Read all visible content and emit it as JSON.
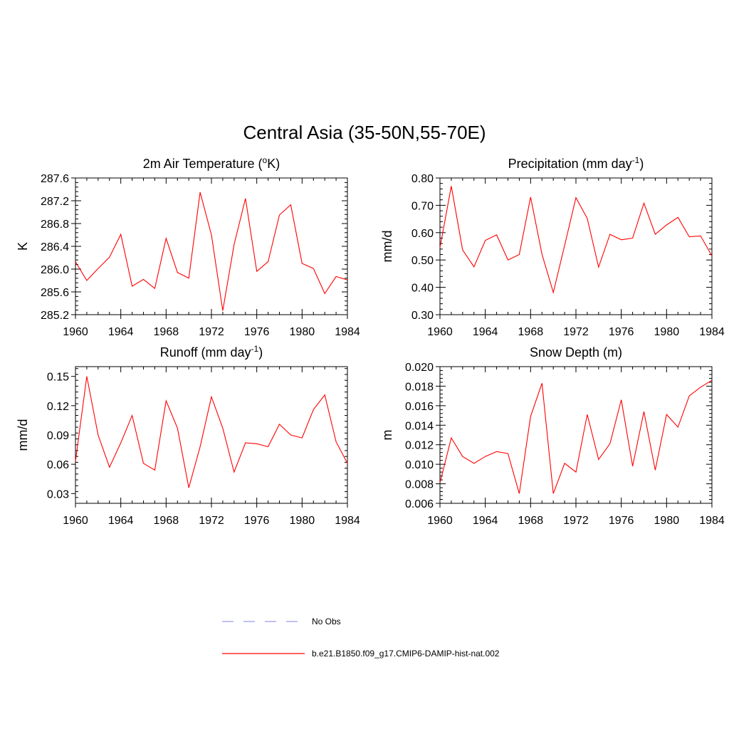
{
  "figure": {
    "title": "Central Asia (35-50N,55-70E)"
  },
  "legend": {
    "items": [
      {
        "label": "No Obs",
        "color": "#9b9bf0",
        "dash": true
      },
      {
        "label": "b.e21.B1850.f09_g17.CMIP6-DAMIP-hist-nat.002",
        "color": "#ff0000",
        "dash": false
      }
    ]
  },
  "chart_data": [
    {
      "type": "line",
      "title": "2m Air Temperature (°K)",
      "title_parts": [
        "2m Air Temperature (",
        "o",
        "K)"
      ],
      "ylabel": "K",
      "xlim": [
        1960,
        1984
      ],
      "ylim": [
        285.2,
        287.6
      ],
      "xticks": [
        1960,
        1964,
        1968,
        1972,
        1976,
        1980,
        1984
      ],
      "xtick_labels": [
        "1960",
        "1964",
        "1968",
        "1972",
        "1976",
        "1980",
        "1984"
      ],
      "yticks": [
        285.2,
        285.6,
        286.0,
        286.4,
        286.8,
        287.2,
        287.6
      ],
      "ytick_labels": [
        "285.2",
        "285.6",
        "286.0",
        "286.4",
        "286.8",
        "287.2",
        "287.6"
      ],
      "series": [
        {
          "color": "#ff0000",
          "x": [
            1960,
            1961,
            1962,
            1963,
            1964,
            1965,
            1966,
            1967,
            1968,
            1969,
            1970,
            1971,
            1972,
            1973,
            1974,
            1975,
            1976,
            1977,
            1978,
            1979,
            1980,
            1981,
            1982,
            1983,
            1984
          ],
          "values": [
            286.13,
            285.8,
            286.01,
            286.21,
            286.61,
            285.7,
            285.82,
            285.66,
            286.54,
            285.94,
            285.84,
            287.35,
            286.6,
            285.27,
            286.43,
            287.24,
            285.96,
            286.13,
            286.95,
            287.13,
            286.1,
            286.01,
            285.57,
            285.87,
            285.81
          ]
        }
      ]
    },
    {
      "type": "line",
      "title": "Precipitation (mm day-1)",
      "title_parts": [
        "Precipitation (mm day",
        "-1",
        ")"
      ],
      "ylabel": "mm/d",
      "xlim": [
        1960,
        1984
      ],
      "ylim": [
        0.3,
        0.8
      ],
      "xticks": [
        1960,
        1964,
        1968,
        1972,
        1976,
        1980,
        1984
      ],
      "xtick_labels": [
        "1960",
        "1964",
        "1968",
        "1972",
        "1976",
        "1980",
        "1984"
      ],
      "yticks": [
        0.3,
        0.4,
        0.5,
        0.6,
        0.7,
        0.8
      ],
      "ytick_labels": [
        "0.30",
        "0.40",
        "0.50",
        "0.60",
        "0.70",
        "0.80"
      ],
      "series": [
        {
          "color": "#ff0000",
          "x": [
            1960,
            1961,
            1962,
            1963,
            1964,
            1965,
            1966,
            1967,
            1968,
            1969,
            1970,
            1971,
            1972,
            1973,
            1974,
            1975,
            1976,
            1977,
            1978,
            1979,
            1980,
            1981,
            1982,
            1983,
            1984
          ],
          "values": [
            0.545,
            0.77,
            0.537,
            0.475,
            0.572,
            0.592,
            0.5,
            0.52,
            0.73,
            0.521,
            0.381,
            0.553,
            0.728,
            0.652,
            0.474,
            0.594,
            0.574,
            0.58,
            0.708,
            0.594,
            0.628,
            0.656,
            0.585,
            0.588,
            0.515
          ]
        }
      ]
    },
    {
      "type": "line",
      "title": "Runoff (mm day-1)",
      "title_parts": [
        "Runoff (mm day",
        "-1",
        ")"
      ],
      "ylabel": "mm/d",
      "xlim": [
        1960,
        1984
      ],
      "ylim": [
        0.02,
        0.16
      ],
      "xticks": [
        1960,
        1964,
        1968,
        1972,
        1976,
        1980,
        1984
      ],
      "xtick_labels": [
        "1960",
        "1964",
        "1968",
        "1972",
        "1976",
        "1980",
        "1984"
      ],
      "yticks": [
        0.03,
        0.06,
        0.09,
        0.12,
        0.15
      ],
      "ytick_labels": [
        "0.03",
        "0.06",
        "0.09",
        "0.12",
        "0.15"
      ],
      "series": [
        {
          "color": "#ff0000",
          "x": [
            1960,
            1961,
            1962,
            1963,
            1964,
            1965,
            1966,
            1967,
            1968,
            1969,
            1970,
            1971,
            1972,
            1973,
            1974,
            1975,
            1976,
            1977,
            1978,
            1979,
            1980,
            1981,
            1982,
            1983,
            1984
          ],
          "values": [
            0.063,
            0.15,
            0.09,
            0.057,
            0.082,
            0.11,
            0.061,
            0.054,
            0.125,
            0.097,
            0.036,
            0.078,
            0.129,
            0.097,
            0.052,
            0.082,
            0.081,
            0.078,
            0.101,
            0.09,
            0.087,
            0.116,
            0.131,
            0.083,
            0.061
          ]
        }
      ]
    },
    {
      "type": "line",
      "title": "Snow Depth (m)",
      "title_parts": [
        "Snow Depth (m)",
        "",
        ""
      ],
      "ylabel": "m",
      "xlim": [
        1960,
        1984
      ],
      "ylim": [
        0.006,
        0.02
      ],
      "xticks": [
        1960,
        1964,
        1968,
        1972,
        1976,
        1980,
        1984
      ],
      "xtick_labels": [
        "1960",
        "1964",
        "1968",
        "1972",
        "1976",
        "1980",
        "1984"
      ],
      "yticks": [
        0.006,
        0.008,
        0.01,
        0.012,
        0.014,
        0.016,
        0.018,
        0.02
      ],
      "ytick_labels": [
        "0.006",
        "0.008",
        "0.010",
        "0.012",
        "0.014",
        "0.016",
        "0.018",
        "0.020"
      ],
      "series": [
        {
          "color": "#ff0000",
          "x": [
            1960,
            1961,
            1962,
            1963,
            1964,
            1965,
            1966,
            1967,
            1968,
            1969,
            1970,
            1971,
            1972,
            1973,
            1974,
            1975,
            1976,
            1977,
            1978,
            1979,
            1980,
            1981,
            1982,
            1983,
            1984
          ],
          "values": [
            0.0081,
            0.0127,
            0.0108,
            0.0101,
            0.0108,
            0.0113,
            0.0111,
            0.007,
            0.0149,
            0.0183,
            0.007,
            0.0101,
            0.0092,
            0.0151,
            0.0105,
            0.0121,
            0.0166,
            0.0098,
            0.0154,
            0.0094,
            0.0151,
            0.0138,
            0.017,
            0.0179,
            0.0186
          ]
        }
      ]
    }
  ]
}
